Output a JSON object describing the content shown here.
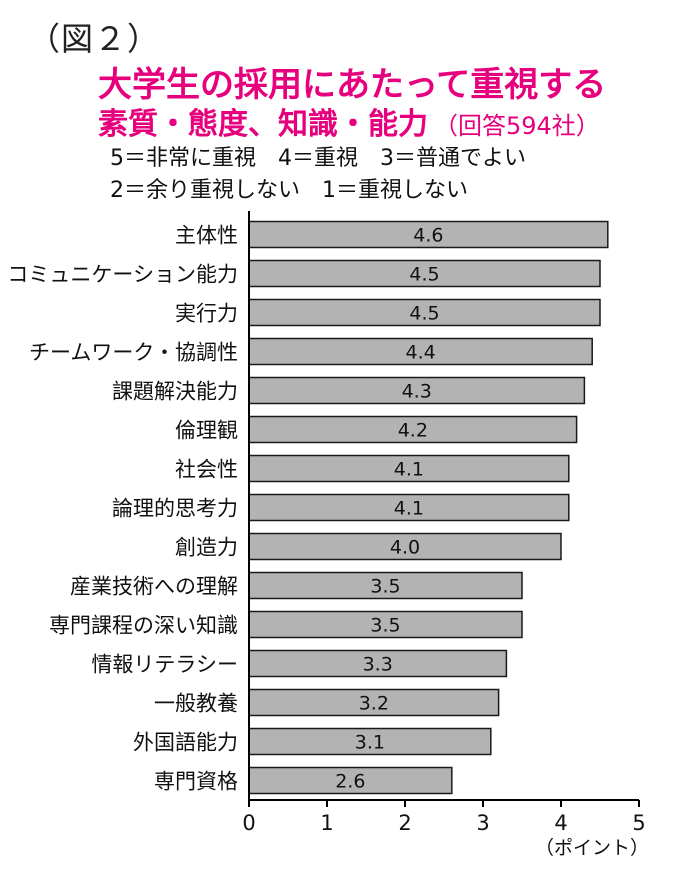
{
  "figure_label": "（図２）",
  "title": "大学生の採用にあたって重視する",
  "subtitle": "素質・態度、知識・能力",
  "respondents": "（回答594社）",
  "legend_lines": [
    "5＝非常に重視　4＝重視　3＝普通でよい",
    "2＝余り重視しない　1＝重視しない"
  ],
  "colors": {
    "title": "#e6007e",
    "bar_fill": "#b3b3b3",
    "bar_stroke": "#1a1a1a",
    "axis": "#000000"
  },
  "chart_data": {
    "type": "bar",
    "orientation": "horizontal",
    "categories": [
      "主体性",
      "コミュニケーション能力",
      "実行力",
      "チームワーク・協調性",
      "課題解決能力",
      "倫理観",
      "社会性",
      "論理的思考力",
      "創造力",
      "産業技術への理解",
      "専門課程の深い知識",
      "情報リテラシー",
      "一般教養",
      "外国語能力",
      "専門資格"
    ],
    "values": [
      4.6,
      4.5,
      4.5,
      4.4,
      4.3,
      4.2,
      4.1,
      4.1,
      4.0,
      3.5,
      3.5,
      3.3,
      3.2,
      3.1,
      2.6
    ],
    "value_labels": [
      "4.6",
      "4.5",
      "4.5",
      "4.4",
      "4.3",
      "4.2",
      "4.1",
      "4.1",
      "4.0",
      "3.5",
      "3.5",
      "3.3",
      "3.2",
      "3.1",
      "2.6"
    ],
    "xlim": [
      0,
      5
    ],
    "x_ticks": [
      "0",
      "1",
      "2",
      "3",
      "4",
      "5"
    ],
    "xlabel": "（ポイント）",
    "grid": false
  }
}
